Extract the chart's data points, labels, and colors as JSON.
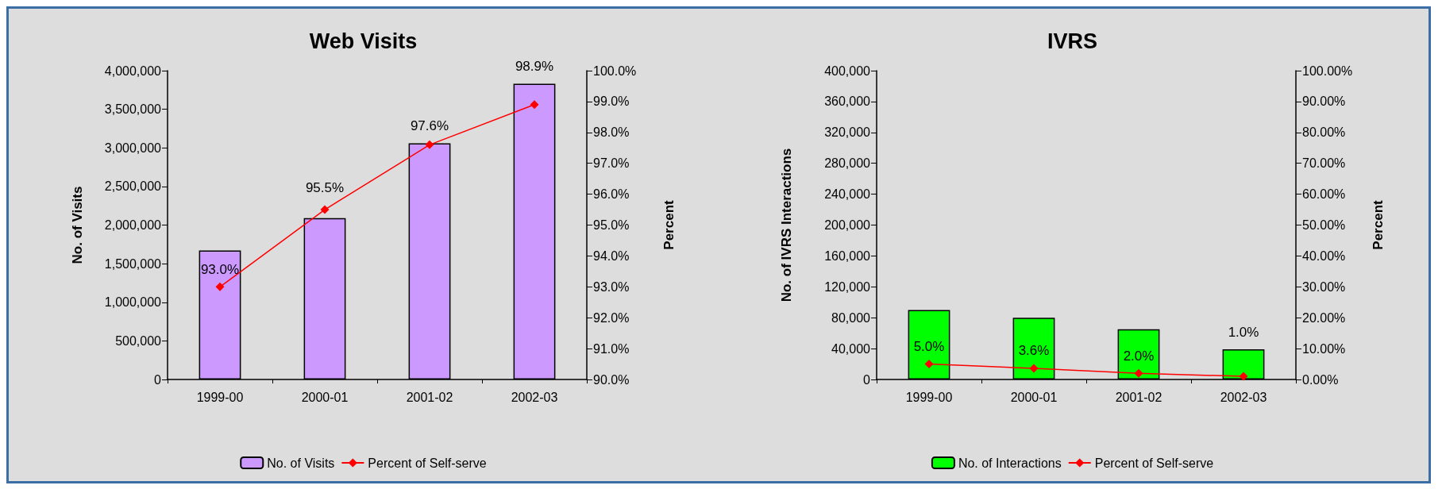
{
  "chart_data": [
    {
      "type": "bar",
      "title": "Web Visits",
      "categories": [
        "1999-00",
        "2000-01",
        "2001-02",
        "2002-03"
      ],
      "ylabel": "No. of Visits",
      "y2label": "Percent",
      "series": [
        {
          "name": "No. of Visits",
          "color": "#cc99ff",
          "values": [
            1670000,
            2090000,
            3060000,
            3830000
          ]
        },
        {
          "name": "Percent of Self-serve",
          "type": "line",
          "axis": "y2",
          "color": "#ff0000",
          "values": [
            93.0,
            95.5,
            97.6,
            98.9
          ],
          "value_labels": [
            "93.0%",
            "95.5%",
            "97.6%",
            "98.9%"
          ]
        }
      ],
      "ylim": [
        0,
        4000000
      ],
      "yticks": [
        0,
        {
          "value": 500000,
          "label": "500,000"
        },
        {
          "value": 1000000,
          "label": "1,000,000"
        },
        {
          "value": 1500000,
          "label": "1,500,000"
        },
        {
          "value": 2000000,
          "label": "2,000,000"
        },
        {
          "value": 2500000,
          "label": "2,500,000"
        },
        {
          "value": 3000000,
          "label": "3,000,000"
        },
        {
          "value": 3500000,
          "label": "3,500,000"
        },
        {
          "value": 4000000,
          "label": "4,000,000"
        }
      ],
      "y2lim": [
        90,
        100
      ],
      "y2ticks": [
        {
          "value": 90,
          "label": "90.0%"
        },
        {
          "value": 91,
          "label": "91.0%"
        },
        {
          "value": 92,
          "label": "92.0%"
        },
        {
          "value": 93,
          "label": "93.0%"
        },
        {
          "value": 94,
          "label": "94.0%"
        },
        {
          "value": 95,
          "label": "95.0%"
        },
        {
          "value": 96,
          "label": "96.0%"
        },
        {
          "value": 97,
          "label": "97.0%"
        },
        {
          "value": 98,
          "label": "98.0%"
        },
        {
          "value": 99,
          "label": "99.0%"
        },
        {
          "value": 100,
          "label": "100.0%"
        }
      ],
      "grid": false,
      "legend": "bottom",
      "marker": "diamond",
      "line_style": "solid"
    },
    {
      "type": "bar",
      "title": "IVRS",
      "categories": [
        "1999-00",
        "2000-01",
        "2001-02",
        "2002-03"
      ],
      "ylabel": "No. of IVRS Interactions",
      "y2label": "Percent",
      "series": [
        {
          "name": "No. of Interactions",
          "color": "#00ff00",
          "values": [
            90000,
            80000,
            65000,
            39000
          ]
        },
        {
          "name": "Percent of Self-serve",
          "type": "line",
          "axis": "y2",
          "color": "#ff0000",
          "values": [
            5.0,
            3.6,
            2.0,
            1.0
          ],
          "value_labels": [
            "5.0%",
            "3.6%",
            "2.0%",
            "1.0%"
          ]
        }
      ],
      "ylim": [
        0,
        400000
      ],
      "yticks": [
        0,
        {
          "value": 40000,
          "label": "40,000"
        },
        {
          "value": 80000,
          "label": "80,000"
        },
        {
          "value": 120000,
          "label": "120,000"
        },
        {
          "value": 160000,
          "label": "160,000"
        },
        {
          "value": 200000,
          "label": "200,000"
        },
        {
          "value": 240000,
          "label": "240,000"
        },
        {
          "value": 280000,
          "label": "280,000"
        },
        {
          "value": 320000,
          "label": "320,000"
        },
        {
          "value": 360000,
          "label": "360,000"
        },
        {
          "value": 400000,
          "label": "400,000"
        }
      ],
      "y2lim": [
        0,
        100
      ],
      "y2ticks": [
        {
          "value": 0,
          "label": "0.00%"
        },
        {
          "value": 10,
          "label": "10.00%"
        },
        {
          "value": 20,
          "label": "20.00%"
        },
        {
          "value": 30,
          "label": "30.00%"
        },
        {
          "value": 40,
          "label": "40.00%"
        },
        {
          "value": 50,
          "label": "50.00%"
        },
        {
          "value": 60,
          "label": "60.00%"
        },
        {
          "value": 70,
          "label": "70.00%"
        },
        {
          "value": 80,
          "label": "80.00%"
        },
        {
          "value": 90,
          "label": "90.00%"
        },
        {
          "value": 100,
          "label": "100.00%"
        }
      ],
      "grid": false,
      "legend": "bottom",
      "marker": "diamond",
      "line_style": "solid"
    }
  ]
}
